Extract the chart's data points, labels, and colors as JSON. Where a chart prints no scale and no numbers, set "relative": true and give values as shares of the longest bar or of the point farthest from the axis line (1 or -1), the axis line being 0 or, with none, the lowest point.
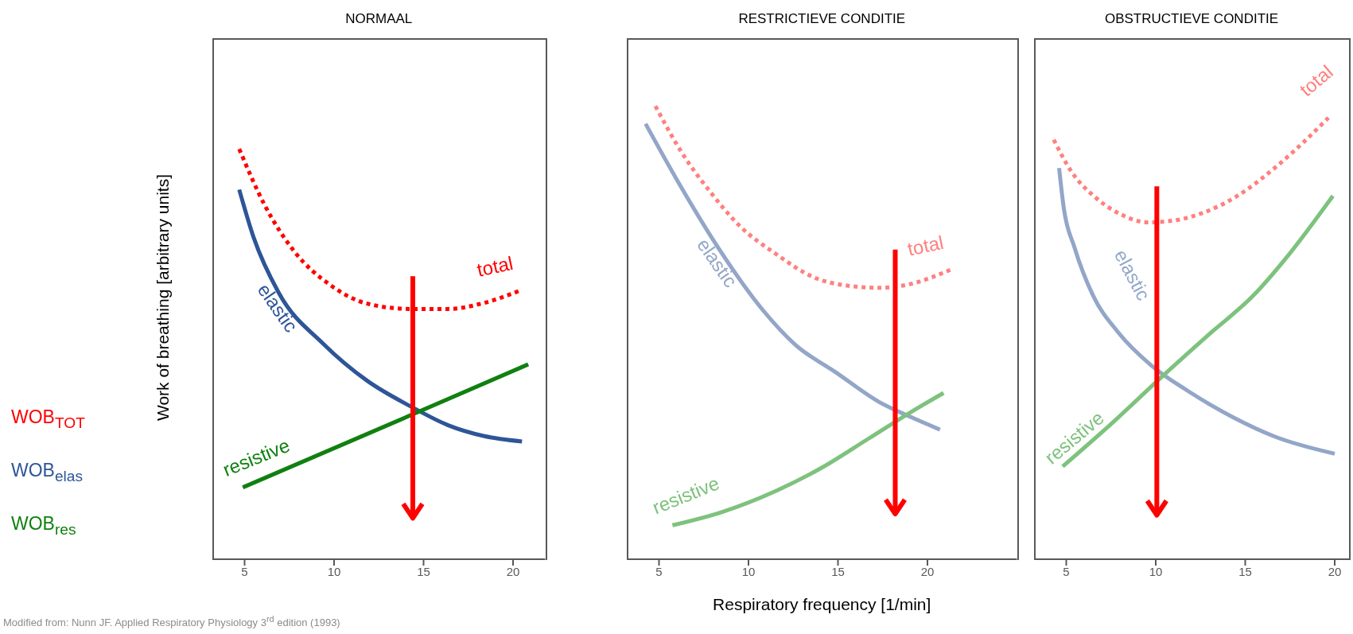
{
  "chart_data": [
    {
      "type": "line",
      "title": "NORMAAL",
      "ylabel": "Work of breathing [arbitrary units]",
      "relative": true,
      "xlim": [
        3.2,
        21.8
      ],
      "xticks": [
        5,
        10,
        15,
        20
      ],
      "annotations": [
        "WOB$_{TOT}$",
        "WOB$_{elas}$",
        "WOB$_{res}$",
        "Modified from: Nunn JF. Applied Respiratory Physiology 3$^{rd}$ edition (1993)"
      ],
      "series": [
        {
          "name": "total",
          "color": "#ff0000",
          "line_style": "dotted",
          "x": [
            4.7,
            6.1,
            7.8,
            9.8,
            11.85,
            14.3,
            16.35,
            18.4,
            20.4
          ],
          "values": [
            1.0,
            0.865,
            0.749,
            0.668,
            0.623,
            0.61,
            0.61,
            0.625,
            0.655
          ]
        },
        {
          "name": "elastic",
          "color": "#2e5597",
          "line_style": "solid",
          "x": [
            4.7,
            5.5,
            6.9,
            9.4,
            11.85,
            14.3,
            16.35,
            18.4,
            20.5
          ],
          "values": [
            0.901,
            0.785,
            0.65,
            0.525,
            0.435,
            0.372,
            0.327,
            0.3,
            0.287
          ]
        },
        {
          "name": "resistive",
          "color": "#108010",
          "line_style": "solid",
          "x": [
            4.9,
            12.9,
            20.85
          ],
          "values": [
            0.175,
            0.325,
            0.475
          ]
        }
      ],
      "ref_lines": [
        {
          "axis": "x",
          "value": 14.4,
          "color": "#ff0000"
        }
      ]
    },
    {
      "type": "line",
      "title": "RESTRICTIEVE CONDITIE",
      "xlabel": "Respiratory frequency [1/min]",
      "relative": true,
      "xlim": [
        3.2,
        25
      ],
      "xticks": [
        5,
        10,
        15,
        20
      ],
      "series": [
        {
          "name": "total",
          "color": "#ff8080",
          "line_style": "dotted",
          "x": [
            4.8,
            6.25,
            7.9,
            9.5,
            11.6,
            13.6,
            15.7,
            17.3,
            19.0,
            21.3
          ],
          "values": [
            1.0,
            0.899,
            0.809,
            0.736,
            0.672,
            0.623,
            0.603,
            0.599,
            0.607,
            0.639
          ]
        },
        {
          "name": "elastic",
          "color": "#93a6c8",
          "line_style": "solid",
          "x": [
            4.25,
            6.05,
            8.3,
            10.8,
            12.6,
            14.9,
            17.3,
            19.0,
            20.7
          ],
          "values": [
            0.961,
            0.834,
            0.688,
            0.55,
            0.474,
            0.412,
            0.347,
            0.315,
            0.286
          ]
        },
        {
          "name": "resistive",
          "color": "#7dc27d",
          "line_style": "solid",
          "x": [
            5.75,
            8.5,
            11.6,
            14.05,
            16.7,
            19.0,
            20.9
          ],
          "values": [
            0.075,
            0.104,
            0.152,
            0.201,
            0.266,
            0.323,
            0.367
          ]
        }
      ],
      "ref_lines": [
        {
          "axis": "x",
          "value": 18.2,
          "color": "#ff0000"
        }
      ]
    },
    {
      "type": "line",
      "title": "OBSTRUCTIEVE CONDITIE",
      "relative": true,
      "xlim": [
        3.2,
        20.8
      ],
      "xticks": [
        5,
        10,
        15,
        20
      ],
      "series": [
        {
          "name": "total",
          "color": "#ff8080",
          "line_style": "dotted",
          "x": [
            4.3,
            5.27,
            6.7,
            8.1,
            9.55,
            11.0,
            12.6,
            14.65,
            16.7,
            18.3,
            19.65
          ],
          "values": [
            0.95,
            0.879,
            0.817,
            0.78,
            0.763,
            0.767,
            0.784,
            0.825,
            0.888,
            0.946,
            1.0
          ]
        },
        {
          "name": "elastic",
          "color": "#93a6c8",
          "line_style": "solid",
          "x": [
            4.6,
            4.86,
            5.47,
            6.5,
            7.9,
            9.75,
            11.8,
            14.25,
            16.7,
            20.0
          ],
          "values": [
            0.886,
            0.796,
            0.705,
            0.597,
            0.514,
            0.439,
            0.381,
            0.323,
            0.277,
            0.239
          ]
        },
        {
          "name": "resistive",
          "color": "#7dc27d",
          "line_style": "solid",
          "x": [
            4.8,
            7.5,
            10.15,
            13.0,
            15.45,
            17.4,
            19.9
          ],
          "values": [
            0.21,
            0.306,
            0.406,
            0.51,
            0.597,
            0.688,
            0.823
          ]
        }
      ],
      "ref_lines": [
        {
          "axis": "x",
          "value": 10.06,
          "color": "#ff0000"
        }
      ]
    }
  ]
}
